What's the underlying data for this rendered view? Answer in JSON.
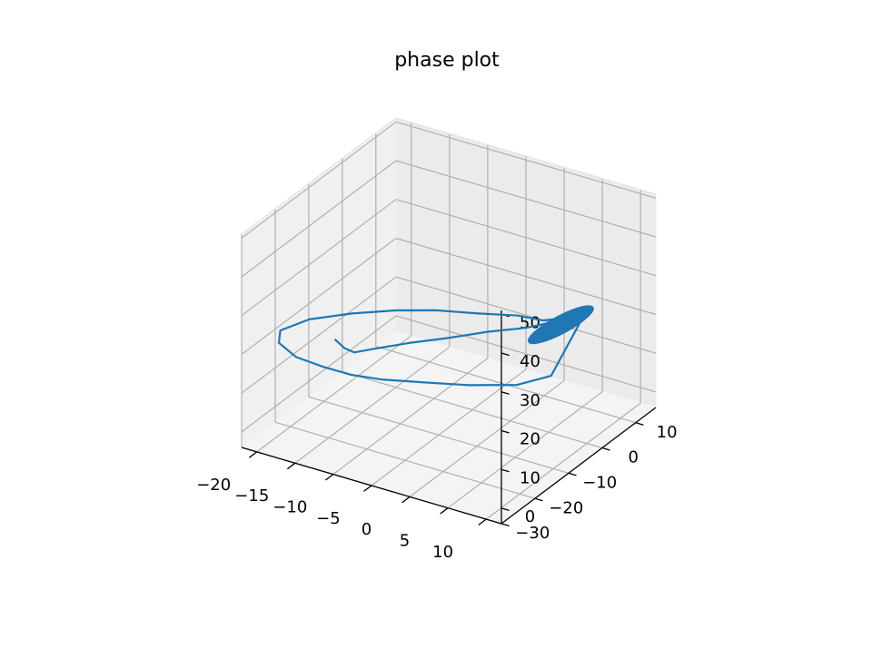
{
  "chart_data": {
    "type": "line",
    "projection": "3d",
    "title": "phase plot",
    "xlabel": "",
    "ylabel": "",
    "zlabel": "",
    "grid": true,
    "legend": "none",
    "xlim": [
      -22,
      12
    ],
    "ylim": [
      -30,
      16
    ],
    "zlim": [
      -4,
      51
    ],
    "x_ticks": [
      -20,
      -15,
      -10,
      -5,
      0,
      5,
      10
    ],
    "y_ticks": [
      10,
      0,
      -10,
      -20,
      -30
    ],
    "z_ticks": [
      0,
      10,
      20,
      30,
      40,
      50
    ],
    "x_tick_labels": [
      "−20",
      "−15",
      "−10",
      "−5",
      "0",
      "5",
      "10"
    ],
    "y_tick_labels": [
      "10",
      "0",
      "−10",
      "−20",
      "−30"
    ],
    "z_tick_labels": [
      "0",
      "10",
      "20",
      "30",
      "40",
      "50"
    ],
    "series": [
      {
        "color": "#1f77b4",
        "trajectory": [
          [
            -15.0,
            -18.0,
            20.0
          ],
          [
            -16.0,
            -13.0,
            14.0
          ],
          [
            -16.5,
            -9.0,
            10.0
          ],
          [
            -16.0,
            -4.0,
            8.0
          ],
          [
            -13.5,
            0.5,
            8.0
          ],
          [
            -10.0,
            4.0,
            9.0
          ],
          [
            -6.0,
            7.0,
            11.0
          ],
          [
            -2.0,
            9.0,
            13.0
          ],
          [
            1.5,
            10.0,
            16.0
          ],
          [
            4.0,
            10.0,
            18.0
          ],
          [
            5.5,
            9.0,
            20.0
          ],
          [
            4.0,
            3.0,
            8.0
          ],
          [
            0.0,
            2.0,
            4.0
          ],
          [
            -5.0,
            -1.0,
            3.0
          ],
          [
            -9.0,
            -5.0,
            4.0
          ],
          [
            -12.5,
            -10.0,
            6.0
          ],
          [
            -14.5,
            -14.5,
            9.0
          ],
          [
            -16.0,
            -19.0,
            13.0
          ],
          [
            -17.5,
            -24.0,
            18.0
          ],
          [
            -18.0,
            -28.0,
            24.0
          ],
          [
            -16.5,
            -31.0,
            30.0
          ],
          [
            -12.5,
            -31.5,
            35.5
          ],
          [
            -8.0,
            -29.0,
            38.0
          ],
          [
            -4.0,
            -25.0,
            38.5
          ],
          [
            -1.0,
            -20.0,
            37.0
          ],
          [
            2.0,
            -14.0,
            34.0
          ],
          [
            4.5,
            -8.0,
            31.0
          ],
          [
            6.0,
            -4.0,
            28.0
          ],
          [
            6.8,
            -1.0,
            27.0
          ]
        ],
        "attractor": {
          "x": [
            5.0,
            9.5
          ],
          "y": [
            -5.0,
            2.0
          ],
          "z": [
            23.0,
            29.0
          ]
        }
      }
    ]
  }
}
